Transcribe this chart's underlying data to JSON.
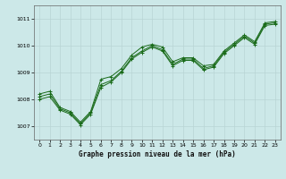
{
  "title": "Graphe pression niveau de la mer (hPa)",
  "background_color": "#cce8e8",
  "grid_color": "#b8d4d4",
  "line_color": "#1a6b1a",
  "xlim": [
    -0.5,
    23.5
  ],
  "ylim": [
    1006.5,
    1011.5
  ],
  "yticks": [
    1007,
    1008,
    1009,
    1010,
    1011
  ],
  "xticks": [
    0,
    1,
    2,
    3,
    4,
    5,
    6,
    7,
    8,
    9,
    10,
    11,
    12,
    13,
    14,
    15,
    16,
    17,
    18,
    19,
    20,
    21,
    22,
    23
  ],
  "series1": [
    1008.2,
    1008.3,
    1007.7,
    1007.55,
    1007.15,
    1007.55,
    1008.75,
    1008.85,
    1009.15,
    1009.65,
    1009.95,
    1010.05,
    1009.95,
    1009.4,
    1009.55,
    1009.55,
    1009.25,
    1009.3,
    1009.8,
    1010.1,
    1010.4,
    1010.15,
    1010.85,
    1010.9
  ],
  "series2": [
    1008.1,
    1008.2,
    1007.65,
    1007.5,
    1007.1,
    1007.5,
    1008.55,
    1008.7,
    1009.05,
    1009.55,
    1009.8,
    1010.0,
    1009.85,
    1009.3,
    1009.5,
    1009.5,
    1009.15,
    1009.25,
    1009.75,
    1010.05,
    1010.35,
    1010.1,
    1010.8,
    1010.85
  ],
  "series3": [
    1008.0,
    1008.1,
    1007.6,
    1007.45,
    1007.05,
    1007.45,
    1008.45,
    1008.65,
    1009.0,
    1009.5,
    1009.75,
    1009.95,
    1009.8,
    1009.25,
    1009.45,
    1009.45,
    1009.1,
    1009.2,
    1009.7,
    1010.0,
    1010.3,
    1010.05,
    1010.75,
    1010.8
  ]
}
